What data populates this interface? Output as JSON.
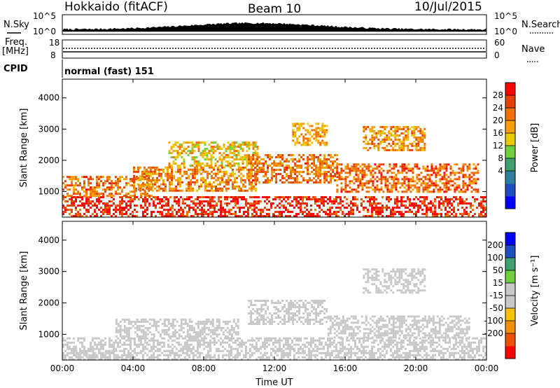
{
  "header": {
    "title": "Hokkaido (fitACF)",
    "beam": "Beam 10",
    "date": "10/Jul/2015"
  },
  "strip_labels": {
    "nsky": "N.Sky",
    "nsearch": "N.Search",
    "freq_top": "Freq.",
    "freq_unit": "[MHz]",
    "nave": "Nave",
    "cpid": "CPID",
    "program": "normal (fast) 151"
  },
  "noise_panel": {
    "left_ticks": [
      "10^5",
      "10^0"
    ],
    "right_ticks": [
      "10^5",
      "10^0"
    ]
  },
  "freq_panel": {
    "left_ticks": [
      "18",
      "8"
    ],
    "right_ticks": [
      "60",
      "0"
    ]
  },
  "chart_data": [
    {
      "type": "heatmap",
      "name": "power",
      "ylabel": "Slant Range [km]",
      "xlabel": "",
      "x_ticks": [
        "00:00",
        "04:00",
        "08:00",
        "12:00",
        "16:00",
        "20:00",
        "00:00"
      ],
      "xlim": [
        0,
        24
      ],
      "y_ticks": [
        "1000",
        "2000",
        "3000",
        "4000"
      ],
      "ylim": [
        180,
        4600
      ],
      "colorbar": {
        "label": "Power [dB]",
        "ticks": [
          "28",
          "24",
          "20",
          "16",
          "12",
          "8",
          "4"
        ],
        "range": [
          0,
          32
        ],
        "colors": [
          "#0000ff",
          "#1f4fbf",
          "#2f7f9f",
          "#3f9f6f",
          "#6fcf3f",
          "#e8c800",
          "#f5a000",
          "#f07000",
          "#e84000",
          "#ff0000"
        ]
      },
      "echo_regions": [
        {
          "t": [
            0,
            24
          ],
          "r": [
            200,
            850
          ],
          "value": 29
        },
        {
          "t": [
            0,
            5
          ],
          "r": [
            850,
            1500
          ],
          "value": 24
        },
        {
          "t": [
            4,
            11
          ],
          "r": [
            1000,
            1800
          ],
          "value": 23
        },
        {
          "t": [
            6,
            11
          ],
          "r": [
            1800,
            2600
          ],
          "value": 19
        },
        {
          "t": [
            10.5,
            15.5
          ],
          "r": [
            1300,
            2200
          ],
          "value": 24
        },
        {
          "t": [
            13,
            15
          ],
          "r": [
            2500,
            3200
          ],
          "value": 21
        },
        {
          "t": [
            15.5,
            23.5
          ],
          "r": [
            1000,
            1900
          ],
          "value": 25
        },
        {
          "t": [
            17,
            20.5
          ],
          "r": [
            2300,
            3100
          ],
          "value": 22
        }
      ]
    },
    {
      "type": "heatmap",
      "name": "velocity",
      "ylabel": "Slant Range [km]",
      "xlabel": "Time UT",
      "x_ticks": [
        "00:00",
        "04:00",
        "08:00",
        "12:00",
        "16:00",
        "20:00",
        "00:00"
      ],
      "xlim": [
        0,
        24
      ],
      "y_ticks": [
        "1000",
        "2000",
        "3000",
        "4000"
      ],
      "ylim": [
        180,
        4600
      ],
      "colorbar": {
        "label": "Velocity [m s⁻¹]",
        "ticks": [
          "200",
          "100",
          "50",
          "15",
          "-15",
          "-50",
          "-100",
          "-200"
        ],
        "range": [
          -250,
          250
        ],
        "colors": [
          "#ff0000",
          "#f05000",
          "#f09000",
          "#f5c000",
          "#c8c8c8",
          "#c8c8c8",
          "#6fcf3f",
          "#3f9f6f",
          "#1f4fbf",
          "#0000ff"
        ]
      },
      "echo_regions": [
        {
          "t": [
            0,
            24
          ],
          "r": [
            200,
            900
          ],
          "value": 0
        },
        {
          "t": [
            3,
            10
          ],
          "r": [
            900,
            1500
          ],
          "value": 0
        },
        {
          "t": [
            10.5,
            15
          ],
          "r": [
            1300,
            2100
          ],
          "value": 0
        },
        {
          "t": [
            15,
            23
          ],
          "r": [
            900,
            1600
          ],
          "value": 0
        },
        {
          "t": [
            17,
            20.5
          ],
          "r": [
            2300,
            3100
          ],
          "value": 40
        },
        {
          "t": [
            0.5,
            3
          ],
          "r": [
            200,
            500
          ],
          "value": 30
        }
      ]
    }
  ]
}
